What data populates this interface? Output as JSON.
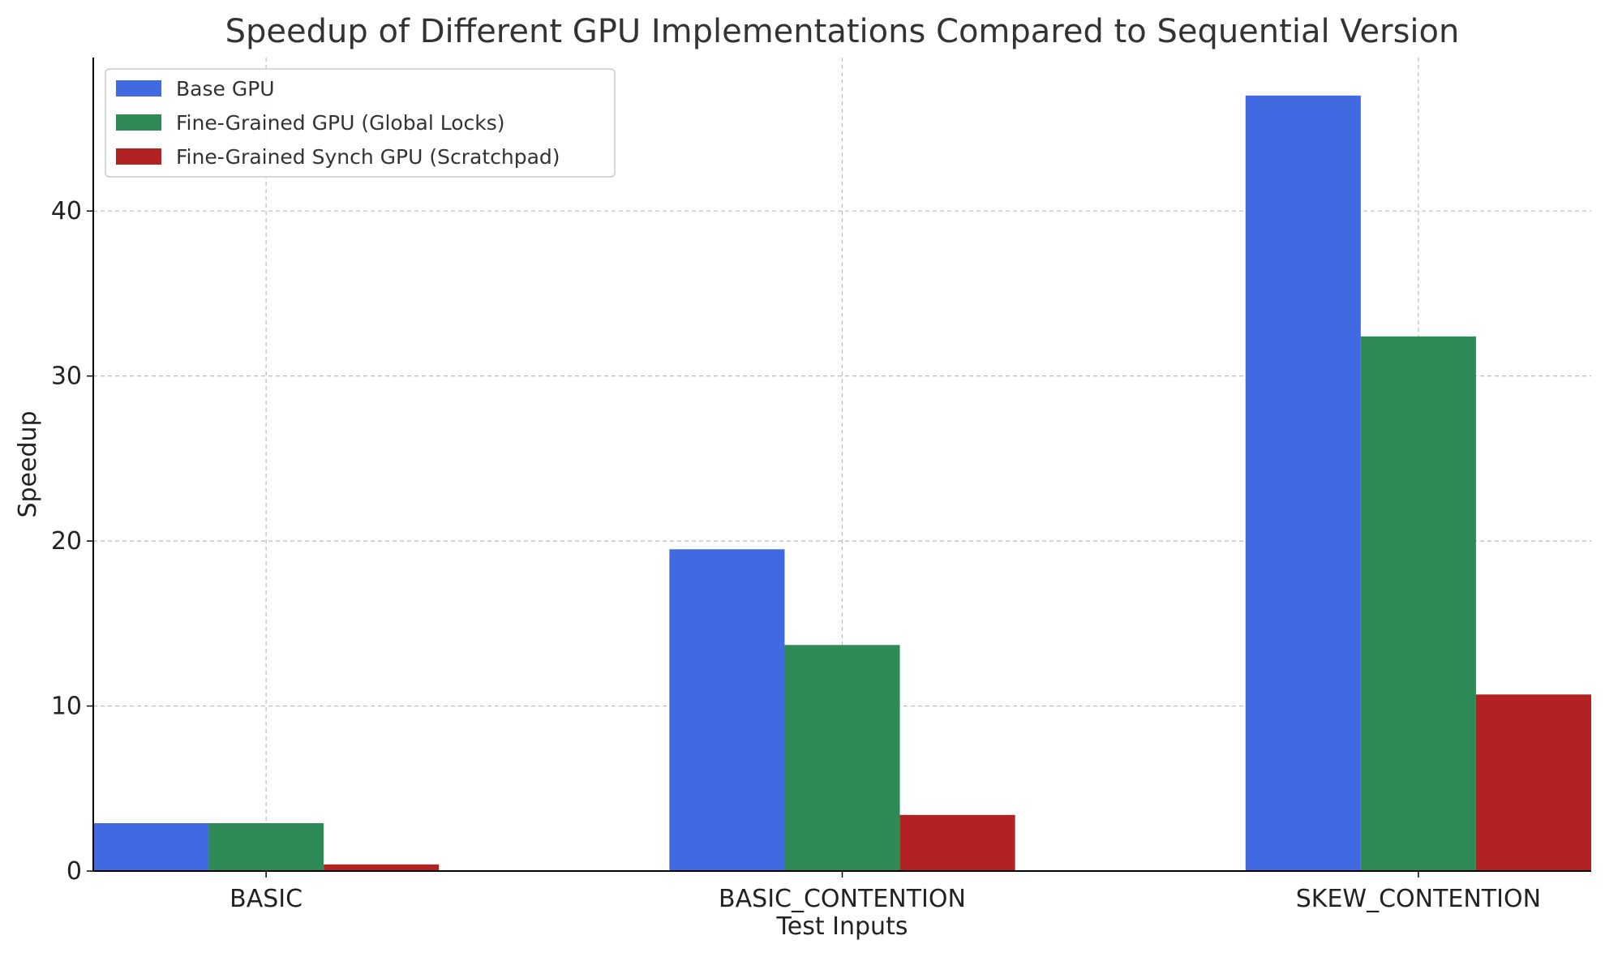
{
  "chart_data": {
    "type": "bar",
    "title": "Speedup of Different GPU Implementations Compared to Sequential Version",
    "xlabel": "Test Inputs",
    "ylabel": "Speedup",
    "categories": [
      "BASIC",
      "BASIC_CONTENTION",
      "SKEW_CONTENTION"
    ],
    "series": [
      {
        "name": "Base GPU",
        "values": [
          2.9,
          19.5,
          47.0
        ],
        "color": "#4169E1"
      },
      {
        "name": "Fine-Grained GPU (Global Locks)",
        "values": [
          2.9,
          13.7,
          32.4
        ],
        "color": "#2E8B57"
      },
      {
        "name": "Fine-Grained Synch GPU (Scratchpad)",
        "values": [
          0.4,
          3.4,
          10.7
        ],
        "color": "#B22222"
      }
    ],
    "ylim": [
      0,
      49.3
    ],
    "yticks": [
      0,
      10,
      20,
      30,
      40
    ],
    "ytick_labels": [
      "0",
      "10",
      "20",
      "30",
      "40"
    ],
    "grid": true,
    "legend_position": "top-left"
  }
}
